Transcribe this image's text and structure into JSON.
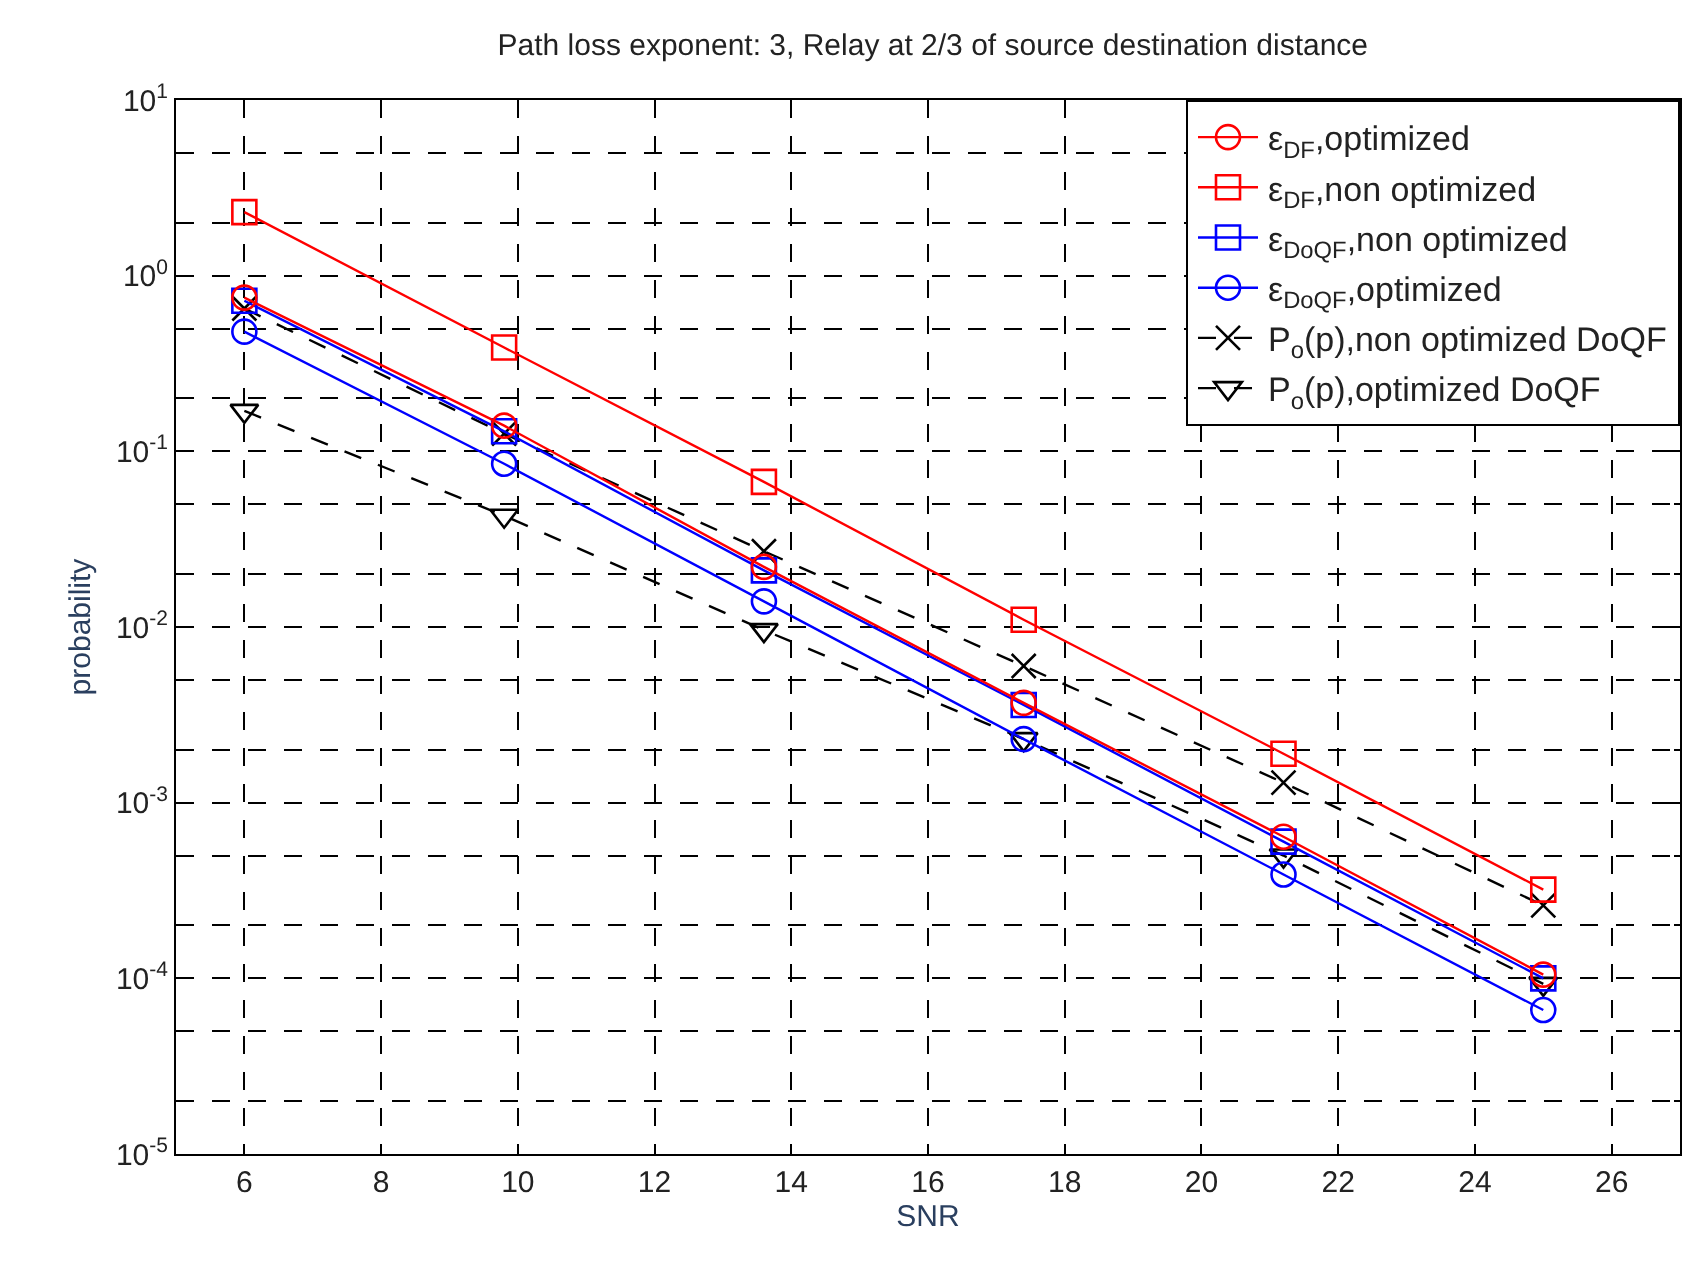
{
  "chart_data": {
    "type": "line",
    "title": "Path loss exponent: 3, Relay at 2/3 of source destination distance",
    "xlabel": "SNR",
    "ylabel": "probability",
    "x": [
      6,
      9.8,
      13.6,
      17.4,
      21.2,
      25
    ],
    "series": [
      {
        "name": "ε$_{DF}$,optimized",
        "color": "#ff0000",
        "marker": "circle",
        "line_style": "solid",
        "values": [
          0.75,
          0.14,
          0.022,
          0.0037,
          0.00064,
          0.000105
        ]
      },
      {
        "name": "ε$_{DF}$,non optimized",
        "color": "#ff0000",
        "marker": "square",
        "line_style": "solid",
        "values": [
          2.3,
          0.39,
          0.067,
          0.011,
          0.0019,
          0.00032
        ]
      },
      {
        "name": "ε$_{DoQF}$,non optimized",
        "color": "#0000ff",
        "marker": "square",
        "line_style": "solid",
        "values": [
          0.72,
          0.13,
          0.021,
          0.0036,
          0.0006,
          0.0001
        ]
      },
      {
        "name": "ε$_{DoQF}$,optimized",
        "color": "#0000ff",
        "marker": "circle",
        "line_style": "solid",
        "values": [
          0.48,
          0.085,
          0.014,
          0.0023,
          0.00039,
          6.6e-05
        ]
      },
      {
        "name": "P$_{o}$(p),non optimized DoQF",
        "color": "#000000",
        "marker": "cross",
        "line_style": "dashed",
        "values": [
          0.65,
          0.126,
          0.027,
          0.006,
          0.0013,
          0.00026
        ]
      },
      {
        "name": "P$_{o}$(p),optimized DoQF",
        "color": "#000000",
        "marker": "triangle",
        "line_style": "dashed",
        "values": [
          0.17,
          0.043,
          0.0096,
          0.0023,
          0.0005,
          9.3e-05
        ]
      }
    ],
    "log": "y",
    "xlim": [
      5,
      27
    ],
    "xticks": [
      6,
      8,
      10,
      12,
      14,
      16,
      18,
      20,
      22,
      24,
      26
    ],
    "ylim": [
      1e-05,
      10
    ],
    "yticks": [
      {
        "value": 1e-05,
        "label": "10$^{-5}$"
      },
      {
        "value": 0.0001,
        "label": "10$^{-4}$"
      },
      {
        "value": 0.001,
        "label": "10$^{-3}$"
      },
      {
        "value": 0.01,
        "label": "10$^{-2}$"
      },
      {
        "value": 0.1,
        "label": "10$^{-1}$"
      },
      {
        "value": 1,
        "label": "10$^{0}$"
      },
      {
        "value": 10,
        "label": "10$^{1}$"
      }
    ],
    "grid": true,
    "legend": "top right"
  }
}
